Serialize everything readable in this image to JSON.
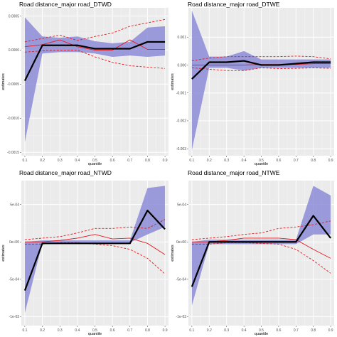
{
  "chart_data": [
    {
      "type": "line",
      "title": "Road distance_major road_DTWD",
      "xlabel": "quantile",
      "ylabel": "estimates",
      "x": [
        0.1,
        0.2,
        0.3,
        0.4,
        0.5,
        0.6,
        0.7,
        0.8,
        0.9
      ],
      "x_tick_labels": [
        "0.1",
        "0.2",
        "0.3",
        "0.4",
        "0.5",
        "0.6",
        "0.7",
        "0.8",
        "0.9"
      ],
      "ylim": [
        -0.00155,
        0.00062
      ],
      "y_ticks": [
        -0.0015,
        -0.001,
        -0.0005,
        0.0,
        0.0005
      ],
      "y_tick_labels": [
        "-0.0015",
        "-0.0010",
        "-0.0005",
        "0.0000",
        "0.0005"
      ],
      "grid": true,
      "series": [
        {
          "role": "ci_band",
          "color": "#8c8cd8",
          "lower": [
            -0.00135,
            -5e-05,
            -3e-05,
            -3e-05,
            -5e-05,
            -0.0001,
            -8e-05,
            -0.0001,
            -8e-05
          ],
          "upper": [
            0.00048,
            0.0002,
            0.00018,
            0.0002,
            0.00013,
            0.0001,
            0.00012,
            0.00033,
            0.00035
          ]
        },
        {
          "role": "estimate",
          "color": "#000000",
          "values": [
            -0.00045,
            7e-05,
            7e-05,
            7e-05,
            2e-05,
            2e-05,
            2e-05,
            0.00012,
            0.00012
          ]
        },
        {
          "role": "ols",
          "color": "#e41a1c",
          "values": [
            5e-05,
            8e-05,
            0.00015,
            5e-05,
            0.0,
            0.0,
            0.00015,
            1e-05,
            1e-05
          ]
        },
        {
          "role": "ols_ci_upper",
          "color": "#e41a1c",
          "dashed": true,
          "values": [
            0.00012,
            0.00017,
            0.00022,
            0.00014,
            0.0002,
            0.00025,
            0.00035,
            0.0004,
            0.00045
          ]
        },
        {
          "role": "ols_ci_lower",
          "color": "#e41a1c",
          "dashed": true,
          "values": [
            -3e-05,
            -1e-05,
            0.0,
            0.0,
            -0.0001,
            -0.00018,
            -0.00023,
            -0.00025,
            -0.00027
          ]
        }
      ]
    },
    {
      "type": "line",
      "title": "Road distance_major road_DTWE",
      "xlabel": "quantile",
      "ylabel": "estimates",
      "x": [
        0.1,
        0.2,
        0.3,
        0.4,
        0.5,
        0.6,
        0.7,
        0.8,
        0.9
      ],
      "x_tick_labels": [
        "0.1",
        "0.2",
        "0.3",
        "0.4",
        "0.5",
        "0.6",
        "0.7",
        "0.8",
        "0.9"
      ],
      "ylim": [
        -0.00325,
        0.00205
      ],
      "y_ticks": [
        -0.003,
        -0.002,
        -0.001,
        0.0,
        0.001
      ],
      "y_tick_labels": [
        "-0.003",
        "-0.002",
        "-0.001",
        "0.000",
        "0.001"
      ],
      "grid": true,
      "series": [
        {
          "role": "ci_band",
          "color": "#8c8cd8",
          "lower": [
            -0.00305,
            -0.0001,
            -0.0001,
            -0.0002,
            -0.0001,
            -0.0001,
            -0.0001,
            -0.0001,
            -0.0001
          ],
          "upper": [
            0.00195,
            0.0003,
            0.0003,
            0.0005,
            0.0002,
            0.0002,
            0.0002,
            0.0002,
            0.0002
          ]
        },
        {
          "role": "estimate",
          "color": "#000000",
          "values": [
            -0.0005,
            0.0001,
            0.0001,
            0.00015,
            0.0,
            0.0,
            5e-05,
            0.0001,
            0.0001
          ]
        },
        {
          "role": "ols",
          "color": "#e41a1c",
          "values": [
            0.0,
            0.0,
            0.0,
            0.0,
            2e-05,
            2e-05,
            2e-05,
            5e-05,
            5e-05
          ]
        },
        {
          "role": "ols_ci_upper",
          "color": "#e41a1c",
          "dashed": true,
          "values": [
            0.00015,
            0.00025,
            0.0003,
            0.0003,
            0.0003,
            0.0003,
            0.00032,
            0.0003,
            0.00022
          ]
        },
        {
          "role": "ols_ci_lower",
          "color": "#e41a1c",
          "dashed": true,
          "values": [
            -0.0001,
            -0.00015,
            -0.0002,
            -0.0002,
            -0.0001,
            -0.00013,
            -0.00012,
            -0.0001,
            -0.00012
          ]
        }
      ]
    },
    {
      "type": "line",
      "title": "Road distance_major road_NTWD",
      "xlabel": "quantile",
      "ylabel": "estimates",
      "x": [
        0.1,
        0.2,
        0.3,
        0.4,
        0.5,
        0.6,
        0.7,
        0.8,
        0.9
      ],
      "x_tick_labels": [
        "0.1",
        "0.2",
        "0.3",
        "0.4",
        "0.5",
        "0.6",
        "0.7",
        "0.8",
        "0.9"
      ],
      "ylim": [
        -0.00112,
        0.00082
      ],
      "y_ticks": [
        -0.001,
        -0.0005,
        0.0,
        0.0005
      ],
      "y_tick_labels": [
        "-1e-03",
        "-5e-04",
        "0e+00",
        "5e-04"
      ],
      "grid": true,
      "series": [
        {
          "role": "ci_band",
          "color": "#8c8cd8",
          "lower": [
            -0.00095,
            -2e-05,
            -1e-05,
            -1e-05,
            -1e-05,
            -1e-05,
            -1e-05,
            0.0001,
            0.0002
          ],
          "upper": [
            0.0,
            2e-05,
            2e-05,
            2e-05,
            2e-05,
            2e-05,
            2e-05,
            0.00072,
            0.00075
          ]
        },
        {
          "role": "estimate",
          "color": "#000000",
          "values": [
            -0.00065,
            -2e-05,
            -2e-05,
            -2e-05,
            -2e-05,
            -2e-05,
            -2e-05,
            0.00042,
            0.00017
          ]
        },
        {
          "role": "ols",
          "color": "#e41a1c",
          "values": [
            0.0,
            0.0,
            2e-05,
            5e-05,
            0.0001,
            4e-05,
            5e-05,
            -2e-05,
            -0.00017
          ]
        },
        {
          "role": "ols_ci_upper",
          "color": "#e41a1c",
          "dashed": true,
          "values": [
            3e-05,
            5e-05,
            7e-05,
            0.00012,
            0.00018,
            0.00018,
            0.0002,
            0.00018,
            0.0003
          ]
        },
        {
          "role": "ols_ci_lower",
          "color": "#e41a1c",
          "dashed": true,
          "values": [
            -3e-05,
            -3e-05,
            -1e-05,
            -1e-05,
            -3e-05,
            -5e-05,
            -0.0001,
            -0.00022,
            -0.00043
          ]
        }
      ]
    },
    {
      "type": "line",
      "title": "Road distance_major road_NTWE",
      "xlabel": "quantile",
      "ylabel": "estimates",
      "x": [
        0.1,
        0.2,
        0.3,
        0.4,
        0.5,
        0.6,
        0.7,
        0.8,
        0.9
      ],
      "x_tick_labels": [
        "0.1",
        "0.2",
        "0.3",
        "0.4",
        "0.5",
        "0.6",
        "0.7",
        "0.8",
        "0.9"
      ],
      "ylim": [
        -0.00112,
        0.00082
      ],
      "y_ticks": [
        -0.001,
        -0.0005,
        0.0,
        0.0005
      ],
      "y_tick_labels": [
        "-1e-03",
        "-5e-04",
        "0e+00",
        "5e-04"
      ],
      "grid": true,
      "series": [
        {
          "role": "ci_band",
          "color": "#8c8cd8",
          "lower": [
            -0.00085,
            -3e-05,
            -3e-05,
            -3e-05,
            -3e-05,
            -3e-05,
            -3e-05,
            0.0001,
            0.0001
          ],
          "upper": [
            0.0,
            3e-05,
            3e-05,
            3e-05,
            3e-05,
            3e-05,
            3e-05,
            0.00075,
            0.00062
          ]
        },
        {
          "role": "estimate",
          "color": "#000000",
          "values": [
            -0.0006,
            0.0,
            0.0,
            0.0,
            0.0,
            0.0,
            0.0,
            0.00035,
            5e-05
          ]
        },
        {
          "role": "ols",
          "color": "#e41a1c",
          "values": [
            0.0,
            0.0,
            2e-05,
            5e-05,
            5e-05,
            5e-05,
            3e-05,
            -0.0001,
            -0.00022
          ]
        },
        {
          "role": "ols_ci_upper",
          "color": "#e41a1c",
          "dashed": true,
          "values": [
            3e-05,
            5e-05,
            7e-05,
            0.0001,
            0.00012,
            0.00018,
            0.0002,
            0.00023,
            0.00028
          ]
        },
        {
          "role": "ols_ci_lower",
          "color": "#e41a1c",
          "dashed": true,
          "values": [
            -3e-05,
            -3e-05,
            -1e-05,
            -1e-05,
            -2e-05,
            -3e-05,
            -0.0001,
            -0.00025,
            -0.00042
          ]
        }
      ]
    }
  ]
}
